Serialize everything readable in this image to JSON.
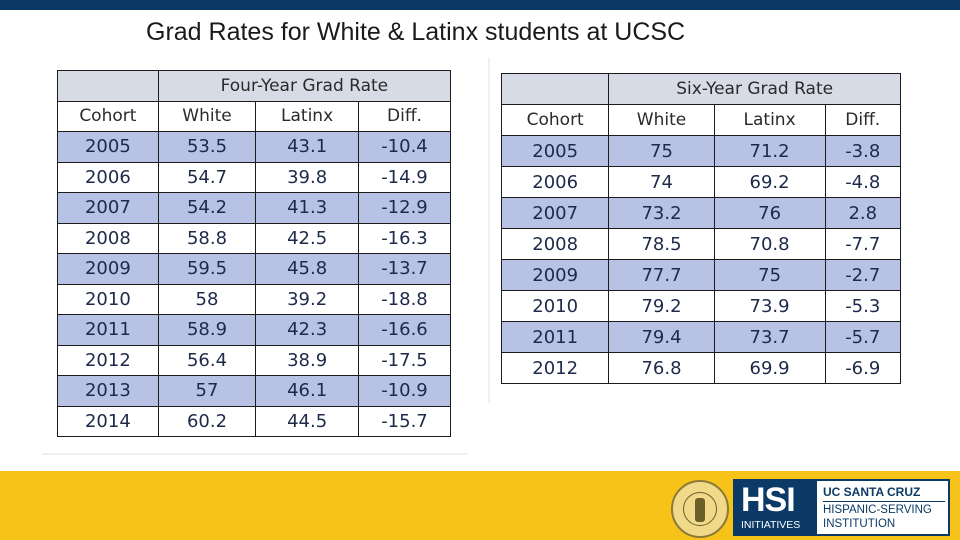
{
  "slide": {
    "title": "Grad Rates for White & Latinx students at UCSC"
  },
  "four_year": {
    "title": "Four-Year Grad Rate",
    "headers": [
      "Cohort",
      "White",
      "Latinx",
      "Diff."
    ],
    "rows": [
      [
        "2005",
        "53.5",
        "43.1",
        "-10.4"
      ],
      [
        "2006",
        "54.7",
        "39.8",
        "-14.9"
      ],
      [
        "2007",
        "54.2",
        "41.3",
        "-12.9"
      ],
      [
        "2008",
        "58.8",
        "42.5",
        "-16.3"
      ],
      [
        "2009",
        "59.5",
        "45.8",
        "-13.7"
      ],
      [
        "2010",
        "58",
        "39.2",
        "-18.8"
      ],
      [
        "2011",
        "58.9",
        "42.3",
        "-16.6"
      ],
      [
        "2012",
        "56.4",
        "38.9",
        "-17.5"
      ],
      [
        "2013",
        "57",
        "46.1",
        "-10.9"
      ],
      [
        "2014",
        "60.2",
        "44.5",
        "-15.7"
      ]
    ]
  },
  "six_year": {
    "title": "Six-Year Grad Rate",
    "headers": [
      "Cohort",
      "White",
      "Latinx",
      "Diff."
    ],
    "rows": [
      [
        "2005",
        "75",
        "71.2",
        "-3.8"
      ],
      [
        "2006",
        "74",
        "69.2",
        "-4.8"
      ],
      [
        "2007",
        "73.2",
        "76",
        "2.8"
      ],
      [
        "2008",
        "78.5",
        "70.8",
        "-7.7"
      ],
      [
        "2009",
        "77.7",
        "75",
        "-2.7"
      ],
      [
        "2010",
        "79.2",
        "73.9",
        "-5.3"
      ],
      [
        "2011",
        "79.4",
        "73.7",
        "-5.7"
      ],
      [
        "2012",
        "76.8",
        "69.9",
        "-6.9"
      ]
    ]
  },
  "footer": {
    "hsi_logo": "HSI",
    "hsi_sub": "INITIATIVES",
    "uc_line1": "UC SANTA CRUZ",
    "uc_line2": "HISPANIC-SERVING",
    "uc_line3": "INSTITUTION"
  }
}
